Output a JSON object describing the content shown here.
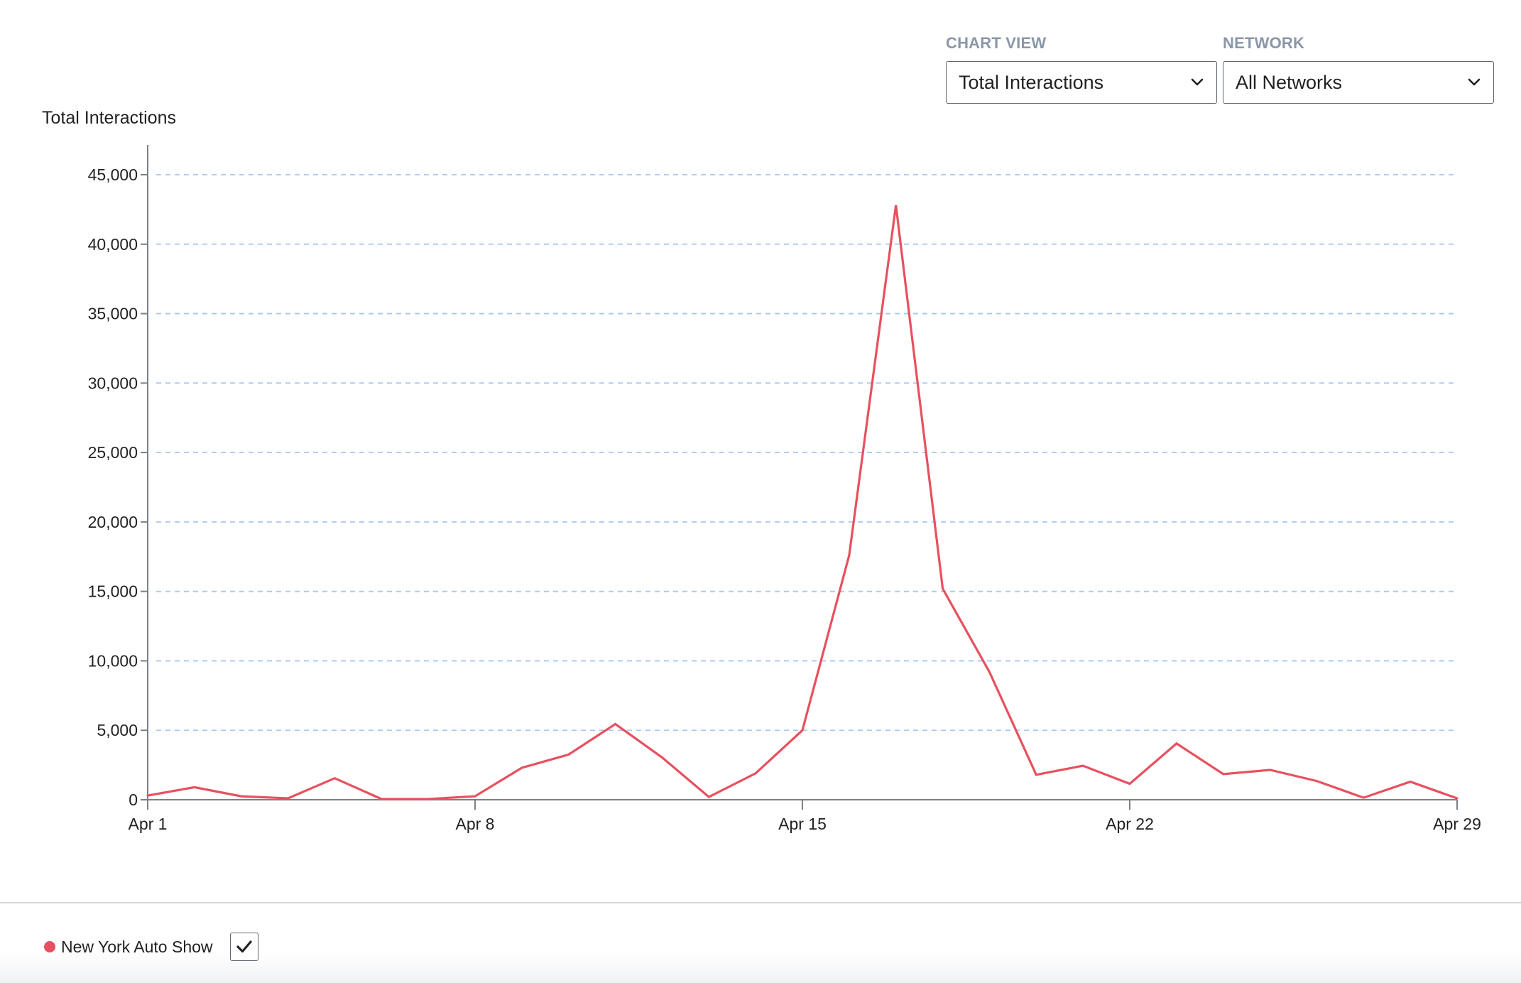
{
  "controls": {
    "chart_view": {
      "label": "CHART VIEW",
      "value": "Total Interactions"
    },
    "network": {
      "label": "NETWORK",
      "value": "All Networks"
    }
  },
  "colors": {
    "series": "#e8505f",
    "grid": "#a9c7ef",
    "axis": "#7b7f86"
  },
  "legend": {
    "items": [
      {
        "label": "New York Auto Show",
        "checked": true,
        "icon": "checkmark-icon"
      }
    ]
  },
  "chart_data": {
    "type": "line",
    "title": "",
    "ylabel": "Total Interactions",
    "xlabel": "",
    "ylim": [
      0,
      45000
    ],
    "yticks": [
      0,
      5000,
      10000,
      15000,
      20000,
      25000,
      30000,
      35000,
      40000,
      45000
    ],
    "ytick_labels": [
      "0",
      "5,000",
      "10,000",
      "15,000",
      "20,000",
      "25,000",
      "30,000",
      "35,000",
      "40,000",
      "45,000"
    ],
    "xlim": [
      "Apr 1",
      "Apr 29"
    ],
    "xtick_labels": [
      "Apr 1",
      "Apr 8",
      "Apr 15",
      "Apr 22",
      "Apr 29"
    ],
    "grid": true,
    "legend_position": "bottom-left",
    "categories": [
      "Apr 1",
      "Apr 2",
      "Apr 3",
      "Apr 4",
      "Apr 5",
      "Apr 6",
      "Apr 7",
      "Apr 8",
      "Apr 9",
      "Apr 10",
      "Apr 11",
      "Apr 12",
      "Apr 13",
      "Apr 14",
      "Apr 15",
      "Apr 16",
      "Apr 17",
      "Apr 18",
      "Apr 19",
      "Apr 20",
      "Apr 21",
      "Apr 22",
      "Apr 23",
      "Apr 24",
      "Apr 25",
      "Apr 26",
      "Apr 27",
      "Apr 28",
      "Apr 29"
    ],
    "series": [
      {
        "name": "New York Auto Show",
        "values": [
          300,
          900,
          250,
          100,
          1550,
          50,
          50,
          250,
          2300,
          3250,
          5450,
          3050,
          200,
          1900,
          5000,
          17600,
          42800,
          15200,
          9200,
          1800,
          2450,
          1150,
          4050,
          1850,
          2150,
          1350,
          150,
          1300,
          100
        ]
      }
    ]
  }
}
